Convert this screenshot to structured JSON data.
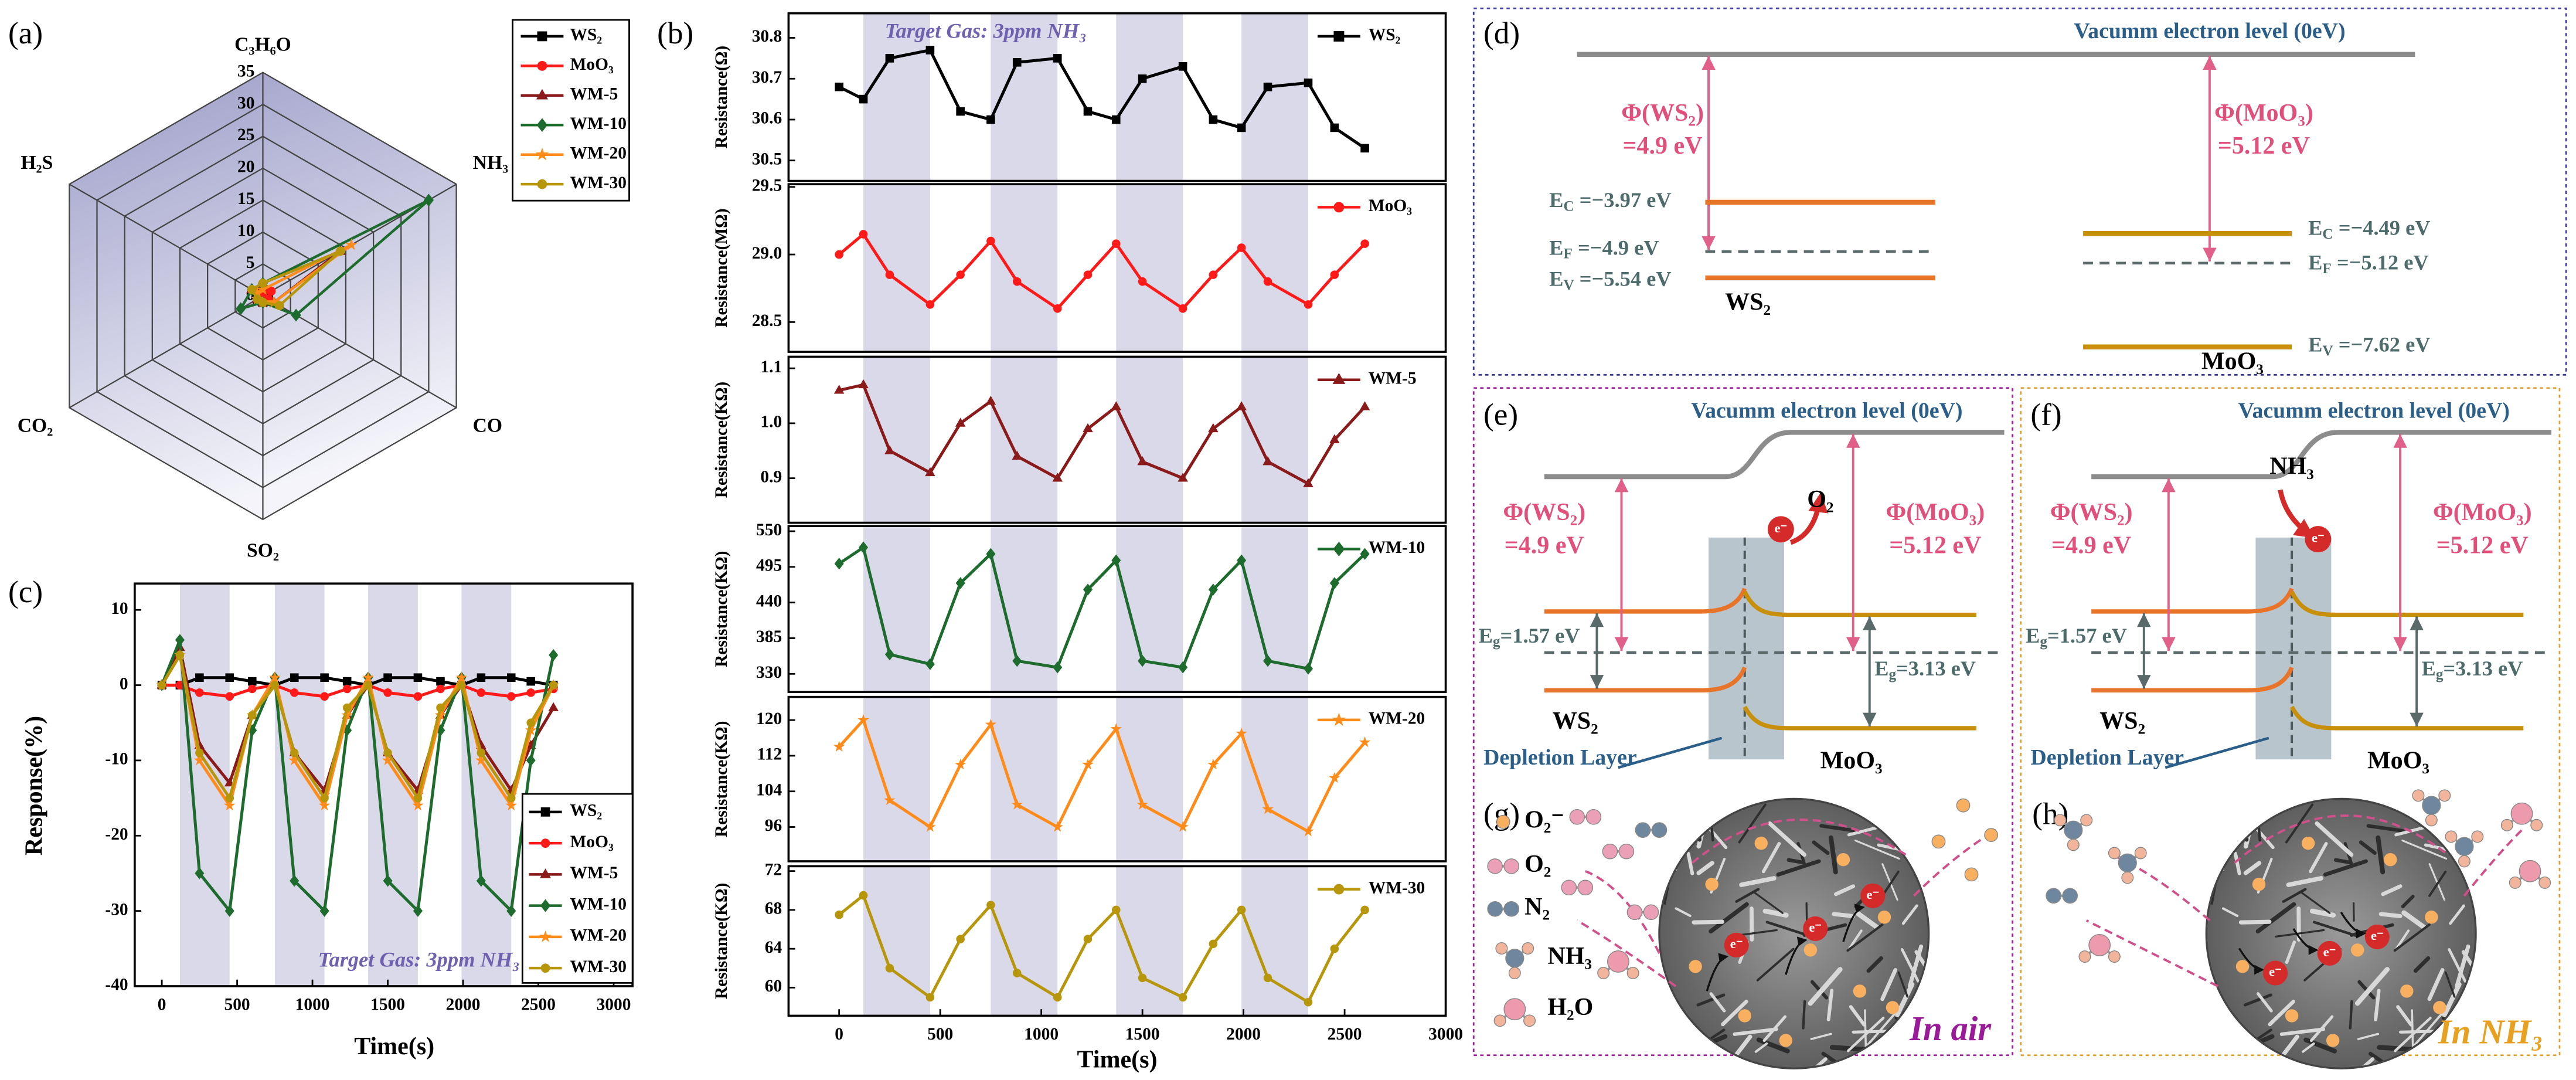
{
  "chart_data": [
    {
      "type": "radar",
      "panel": "(a)",
      "axes": [
        "C₃H₆O",
        "NH₃",
        "CO",
        "SO₂",
        "CO₂",
        "H₂S"
      ],
      "rlim": [
        0,
        35
      ],
      "rticks": [
        0,
        5,
        10,
        15,
        20,
        25,
        30,
        35
      ],
      "series": [
        {
          "name": "WS₂",
          "color": "#000000",
          "marker": "square",
          "values": [
            1,
            1,
            1,
            1,
            1,
            1
          ]
        },
        {
          "name": "MoO₃",
          "color": "#ff1a1a",
          "marker": "circle",
          "values": [
            0.5,
            1.5,
            1,
            0.5,
            1,
            0.5
          ]
        },
        {
          "name": "WM-5",
          "color": "#8b1a1a",
          "marker": "triangle",
          "values": [
            2,
            14,
            2,
            1,
            1,
            2
          ]
        },
        {
          "name": "WM-10",
          "color": "#1e6b2e",
          "marker": "diamond",
          "values": [
            2,
            30,
            6,
            1,
            4,
            2
          ]
        },
        {
          "name": "WM-20",
          "color": "#ff8c1a",
          "marker": "star",
          "values": [
            1,
            16,
            2,
            1,
            1,
            1
          ]
        },
        {
          "name": "WM-30",
          "color": "#b8960c",
          "marker": "circle",
          "values": [
            2,
            14,
            3,
            1,
            1,
            2
          ]
        }
      ]
    },
    {
      "type": "line",
      "panel": "(c)",
      "x": [
        0,
        120,
        250,
        450,
        600,
        750,
        880,
        1080,
        1230,
        1370,
        1500,
        1700,
        1850,
        1990,
        2120,
        2320,
        2450,
        2600
      ],
      "xlim": [
        -180,
        3125
      ],
      "xticks": [
        0,
        500,
        1000,
        1500,
        2000,
        2500,
        3000
      ],
      "ylim": [
        -40,
        13.5
      ],
      "yticks": [
        10,
        0,
        -10,
        -20,
        -30,
        -40
      ],
      "xlabel": "Time(s)",
      "ylabel": "Response(%)",
      "annotation": "Target Gas: 3ppm NH₃",
      "shaded_intervals": [
        [
          120,
          450
        ],
        [
          750,
          1080
        ],
        [
          1370,
          1700
        ],
        [
          1990,
          2320
        ]
      ],
      "series": [
        {
          "name": "WS₂",
          "color": "#000000",
          "marker": "square",
          "values": [
            0,
            0,
            1,
            1,
            0.5,
            0,
            1,
            1,
            0.5,
            0,
            1,
            1,
            0.5,
            0,
            1,
            1,
            0.5,
            0
          ]
        },
        {
          "name": "MoO₃",
          "color": "#ff1a1a",
          "marker": "circle",
          "values": [
            0,
            0,
            -1,
            -1.5,
            -0.5,
            0,
            -1,
            -1.5,
            -0.5,
            0,
            -1,
            -1.5,
            -0.5,
            0,
            -1,
            -1.5,
            -1,
            -0.5
          ]
        },
        {
          "name": "WM-5",
          "color": "#8b1a1a",
          "marker": "triangle",
          "values": [
            0,
            5,
            -8,
            -13,
            -4,
            0,
            -9,
            -14,
            -4,
            0,
            -9,
            -14,
            -4,
            0,
            -8,
            -14,
            -8,
            -3
          ]
        },
        {
          "name": "WM-10",
          "color": "#1e6b2e",
          "marker": "diamond",
          "values": [
            0,
            6,
            -25,
            -30,
            -6,
            1,
            -26,
            -30,
            -6,
            1,
            -26,
            -30,
            -6,
            1,
            -26,
            -30,
            -10,
            4
          ]
        },
        {
          "name": "WM-20",
          "color": "#ff8c1a",
          "marker": "star",
          "values": [
            0,
            4,
            -10,
            -16,
            -4,
            1,
            -10,
            -16,
            -4,
            1,
            -10,
            -16,
            -4,
            1,
            -10,
            -16,
            -6,
            0
          ]
        },
        {
          "name": "WM-30",
          "color": "#b8960c",
          "marker": "circle",
          "values": [
            0,
            4,
            -9,
            -15,
            -4,
            0,
            -9,
            -15,
            -3,
            0,
            -9,
            -15,
            -3,
            0,
            -9,
            -15,
            -5,
            0
          ]
        }
      ]
    },
    {
      "type": "line",
      "panel": "(b)",
      "annotation": "Target Gas: 3ppm NH₃",
      "x": [
        0,
        120,
        250,
        450,
        600,
        750,
        880,
        1080,
        1230,
        1370,
        1500,
        1700,
        1850,
        1990,
        2120,
        2320,
        2450,
        2600
      ],
      "xlim": [
        -250,
        3000
      ],
      "ylim": [
        30.45,
        30.86
      ],
      "yticks": [
        30.5,
        30.6,
        30.7,
        30.8
      ],
      "ylabel": "Resistance(Ω)",
      "shaded_intervals": [
        [
          120,
          450
        ],
        [
          750,
          1080
        ],
        [
          1370,
          1700
        ],
        [
          1990,
          2320
        ]
      ],
      "series": [
        {
          "name": "WS₂",
          "color": "#000000",
          "marker": "square",
          "values": [
            30.68,
            30.65,
            30.75,
            30.77,
            30.62,
            30.6,
            30.74,
            30.75,
            30.62,
            30.6,
            30.7,
            30.73,
            30.6,
            30.58,
            30.68,
            30.69,
            30.58,
            30.53
          ]
        }
      ]
    },
    {
      "type": "line",
      "x": [
        0,
        120,
        250,
        450,
        600,
        750,
        880,
        1080,
        1230,
        1370,
        1500,
        1700,
        1850,
        1990,
        2120,
        2320,
        2450,
        2600
      ],
      "xlim": [
        -250,
        3000
      ],
      "ylim": [
        28.28,
        29.52
      ],
      "yticks": [
        28.5,
        {
          "value": 29,
          "label": "29.0"
        },
        29.5
      ],
      "ylabel": "Resistance(MΩ)",
      "shaded_intervals": [
        [
          120,
          450
        ],
        [
          750,
          1080
        ],
        [
          1370,
          1700
        ],
        [
          1990,
          2320
        ]
      ],
      "series": [
        {
          "name": "MoO₃",
          "color": "#ff1a1a",
          "marker": "circle",
          "values": [
            29.0,
            29.15,
            28.85,
            28.63,
            28.85,
            29.1,
            28.8,
            28.6,
            28.85,
            29.08,
            28.8,
            28.6,
            28.85,
            29.05,
            28.8,
            28.63,
            28.85,
            29.08
          ]
        }
      ]
    },
    {
      "type": "line",
      "x": [
        0,
        120,
        250,
        450,
        600,
        750,
        880,
        1080,
        1230,
        1370,
        1500,
        1700,
        1850,
        1990,
        2120,
        2320,
        2450,
        2600
      ],
      "xlim": [
        -250,
        3000
      ],
      "ylim": [
        0.819,
        1.121
      ],
      "yticks": [
        0.9,
        {
          "value": 1,
          "label": "1.0"
        },
        1.1
      ],
      "ylabel": "Resistance(KΩ)",
      "shaded_intervals": [
        [
          120,
          450
        ],
        [
          750,
          1080
        ],
        [
          1370,
          1700
        ],
        [
          1990,
          2320
        ]
      ],
      "series": [
        {
          "name": "WM-5",
          "color": "#8b1a1a",
          "marker": "triangle",
          "values": [
            1.06,
            1.07,
            0.95,
            0.91,
            1.0,
            1.04,
            0.94,
            0.9,
            0.99,
            1.03,
            0.93,
            0.9,
            0.99,
            1.03,
            0.93,
            0.89,
            0.97,
            1.03
          ]
        }
      ]
    },
    {
      "type": "line",
      "x": [
        0,
        120,
        250,
        450,
        600,
        750,
        880,
        1080,
        1230,
        1370,
        1500,
        1700,
        1850,
        1990,
        2120,
        2320,
        2450,
        2600
      ],
      "xlim": [
        -250,
        3000
      ],
      "ylim": [
        302,
        558
      ],
      "yticks": [
        330,
        385,
        440,
        495,
        550
      ],
      "ylabel": "Resistance(KΩ)",
      "shaded_intervals": [
        [
          120,
          450
        ],
        [
          750,
          1080
        ],
        [
          1370,
          1700
        ],
        [
          1990,
          2320
        ]
      ],
      "series": [
        {
          "name": "WM-10",
          "color": "#1e6b2e",
          "marker": "diamond",
          "values": [
            500,
            525,
            360,
            345,
            470,
            515,
            350,
            340,
            460,
            505,
            350,
            340,
            460,
            505,
            350,
            338,
            470,
            515
          ]
        }
      ]
    },
    {
      "type": "line",
      "x": [
        0,
        120,
        250,
        450,
        600,
        750,
        880,
        1080,
        1230,
        1370,
        1500,
        1700,
        1850,
        1990,
        2120,
        2320,
        2450,
        2600
      ],
      "xlim": [
        -250,
        3000
      ],
      "ylim": [
        88.3,
        125.2
      ],
      "yticks": [
        96,
        104,
        112,
        120
      ],
      "ylabel": "Resistance(KΩ)",
      "shaded_intervals": [
        [
          120,
          450
        ],
        [
          750,
          1080
        ],
        [
          1370,
          1700
        ],
        [
          1990,
          2320
        ]
      ],
      "series": [
        {
          "name": "WM-20",
          "color": "#ff8c1a",
          "marker": "star",
          "values": [
            114,
            120,
            102,
            96,
            110,
            119,
            101,
            96,
            110,
            118,
            101,
            96,
            110,
            117,
            100,
            95,
            107,
            115
          ]
        }
      ]
    },
    {
      "type": "line",
      "x": [
        0,
        120,
        250,
        450,
        600,
        750,
        880,
        1080,
        1230,
        1370,
        1500,
        1700,
        1850,
        1990,
        2120,
        2320,
        2450,
        2600
      ],
      "xlim": [
        -250,
        3000
      ],
      "xticks": [
        0,
        500,
        1000,
        1500,
        2000,
        2500,
        3000
      ],
      "xlabel": "Time(s)",
      "ylim": [
        57.1,
        72.5
      ],
      "yticks": [
        60,
        64,
        68,
        72
      ],
      "ylabel": "Resistance(KΩ)",
      "shaded_intervals": [
        [
          120,
          450
        ],
        [
          750,
          1080
        ],
        [
          1370,
          1700
        ],
        [
          1990,
          2320
        ]
      ],
      "series": [
        {
          "name": "WM-30",
          "color": "#b8960c",
          "marker": "circle",
          "values": [
            67.5,
            69.5,
            62,
            59,
            65,
            68.5,
            61.5,
            59,
            65,
            68,
            61,
            59,
            64.5,
            68,
            61,
            58.5,
            64,
            68
          ]
        }
      ]
    }
  ],
  "diagrams": {
    "d": {
      "panel": "(d)",
      "vacuum": "Vacumm electron level (0eV)",
      "phi_ws2": "Φ(WS₂)",
      "phi_ws2_value": "=4.9 eV",
      "phi_moo3": "Φ(MoO₃)",
      "phi_moo3_value": "=5.12 eV",
      "ws2_levels": [
        {
          "base": "E",
          "sub": "C",
          "rest": " =−3.97 eV"
        },
        {
          "base": "E",
          "sub": "F",
          "rest": " =−4.9 eV"
        },
        {
          "base": "E",
          "sub": "V",
          "rest": " =−5.54 eV"
        }
      ],
      "moo3_levels": [
        {
          "base": "E",
          "sub": "C",
          "rest": " =−4.49 eV"
        },
        {
          "base": "E",
          "sub": "F",
          "rest": " =−5.12 eV"
        },
        {
          "base": "E",
          "sub": "V",
          "rest": " =−7.62 eV"
        }
      ],
      "ws2": "WS₂",
      "moo3": "MoO₃"
    },
    "e": {
      "panel": "(e)",
      "vacuum": "Vacumm electron level (0eV)",
      "phi_ws2": "Φ(WS₂)",
      "phi_ws2_value": "=4.9 eV",
      "phi_moo3": "Φ(MoO₃)",
      "phi_moo3_value": "=5.12 eV",
      "gas": "O₂",
      "electron": "e⁻",
      "eg_ws2": {
        "base": "E",
        "sub": "g",
        "rest": "=1.57 eV"
      },
      "eg_moo3": {
        "base": "E",
        "sub": "g",
        "rest": "=3.13 eV"
      },
      "ws2": "WS₂",
      "depletion": "Depletion Layer",
      "moo3": "MoO₃"
    },
    "f": {
      "panel": "(f)",
      "vacuum": "Vacumm electron level (0eV)",
      "phi_ws2": "Φ(WS₂)",
      "phi_ws2_value": "=4.9 eV",
      "phi_moo3": "Φ(MoO₃)",
      "phi_moo3_value": "=5.12 eV",
      "gas": "NH₃",
      "electron": "e⁻",
      "eg_ws2": {
        "base": "E",
        "sub": "g",
        "rest": "=1.57 eV"
      },
      "eg_moo3": {
        "base": "E",
        "sub": "g",
        "rest": "=3.13 eV"
      },
      "ws2": "WS₂",
      "depletion": "Depletion Layer",
      "moo3": "MoO₃"
    },
    "g": {
      "panel": "(g)",
      "legend": [
        "O₂⁻",
        "O₂",
        "N₂",
        "NH₃",
        "H₂O"
      ],
      "electron": "e⁻",
      "caption": "In air"
    },
    "h": {
      "panel": "(h)",
      "electron": "e⁻",
      "caption": "In NH₃"
    }
  }
}
